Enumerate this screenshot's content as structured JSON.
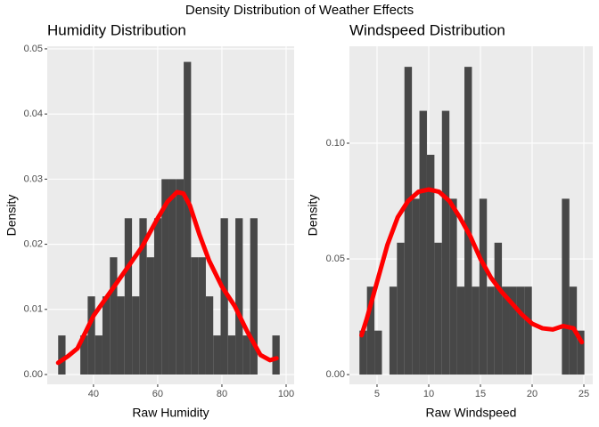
{
  "title": "Density Distribution of Weather Effects",
  "chart_data": [
    {
      "type": "histogram",
      "title": "Humidity Distribution",
      "x_label": "Raw Humidity",
      "y_label": "Density",
      "bins": [
        29,
        31.3,
        33.6,
        35.9,
        38.2,
        40.5,
        42.8,
        45.1,
        47.4,
        49.7,
        52,
        54.3,
        56.6,
        58.9,
        61.2,
        63.5,
        65.8,
        68.1,
        70.4,
        72.7,
        75,
        77.3,
        79.6,
        81.9,
        84.2,
        86.5,
        88.8,
        91.1,
        93.4,
        95.7,
        98
      ],
      "values": [
        0.006,
        0,
        0,
        0.006,
        0.012,
        0.006,
        0.012,
        0.018,
        0.012,
        0.024,
        0.012,
        0.024,
        0.018,
        0.024,
        0.03,
        0.03,
        0.03,
        0.048,
        0.018,
        0.018,
        0.012,
        0.006,
        0.024,
        0.006,
        0.024,
        0.006,
        0.024,
        0,
        0,
        0.006
      ],
      "color": "#474747",
      "density": {
        "x": [
          29,
          32,
          35,
          40,
          45,
          50,
          55,
          60,
          63,
          66,
          68,
          70,
          73,
          76,
          80,
          84,
          88,
          92,
          95,
          97
        ],
        "values": [
          0.0018,
          0.0028,
          0.004,
          0.009,
          0.0125,
          0.016,
          0.0195,
          0.024,
          0.0265,
          0.028,
          0.0278,
          0.026,
          0.0215,
          0.0175,
          0.0135,
          0.0105,
          0.0065,
          0.003,
          0.0022,
          0.0025
        ],
        "color": "#ff0000"
      },
      "xlim": [
        25.6,
        102.5
      ],
      "ylim": [
        -0.0015,
        0.0504
      ],
      "xticks": [
        40,
        60,
        80,
        100
      ],
      "yticks": [
        {
          "value": 0,
          "label": "0.00"
        },
        {
          "value": 0.01,
          "label": "0.01"
        },
        {
          "value": 0.02,
          "label": "0.02"
        },
        {
          "value": 0.03,
          "label": "0.03"
        },
        {
          "value": 0.04,
          "label": "0.04"
        },
        {
          "value": 0.05,
          "label": "0.05"
        }
      ],
      "grid": true
    },
    {
      "type": "histogram",
      "title": "Windspeed Distribution",
      "x_label": "Raw Windspeed",
      "y_label": "Density",
      "bins": [
        3.3,
        4.025,
        4.75,
        5.475,
        6.2,
        6.925,
        7.65,
        8.375,
        9.1,
        9.825,
        10.55,
        11.275,
        12,
        12.725,
        13.45,
        14.175,
        14.9,
        15.625,
        16.35,
        17.075,
        17.8,
        18.525,
        19.25,
        19.975,
        20.7,
        21.425,
        22.15,
        22.875,
        23.6,
        24.325,
        25.05
      ],
      "values": [
        0.019,
        0.038,
        0.019,
        0,
        0.038,
        0.057,
        0.133,
        0.076,
        0.114,
        0.095,
        0.057,
        0.114,
        0.076,
        0.038,
        0.133,
        0.038,
        0.076,
        0.038,
        0.057,
        0.038,
        0.038,
        0.038,
        0.038,
        0,
        0,
        0,
        0,
        0.076,
        0.038,
        0.019
      ],
      "color": "#474747",
      "density": {
        "x": [
          3.5,
          4,
          5,
          6,
          7,
          8,
          9,
          10,
          11,
          12,
          13,
          14,
          15,
          16,
          17,
          18,
          19,
          20,
          21,
          22,
          23,
          24,
          24.8
        ],
        "values": [
          0.017,
          0.024,
          0.04,
          0.056,
          0.068,
          0.075,
          0.079,
          0.08,
          0.079,
          0.075,
          0.068,
          0.06,
          0.05,
          0.042,
          0.036,
          0.031,
          0.026,
          0.022,
          0.02,
          0.0195,
          0.021,
          0.02,
          0.014
        ],
        "color": "#ff0000"
      },
      "xlim": [
        2.33,
        25.86
      ],
      "ylim": [
        -0.0042,
        0.1419
      ],
      "xticks": [
        5,
        10,
        15,
        20,
        25
      ],
      "yticks": [
        {
          "value": 0,
          "label": "0.00"
        },
        {
          "value": 0.05,
          "label": "0.05"
        },
        {
          "value": 0.1,
          "label": "0.10"
        }
      ],
      "grid": true
    }
  ]
}
